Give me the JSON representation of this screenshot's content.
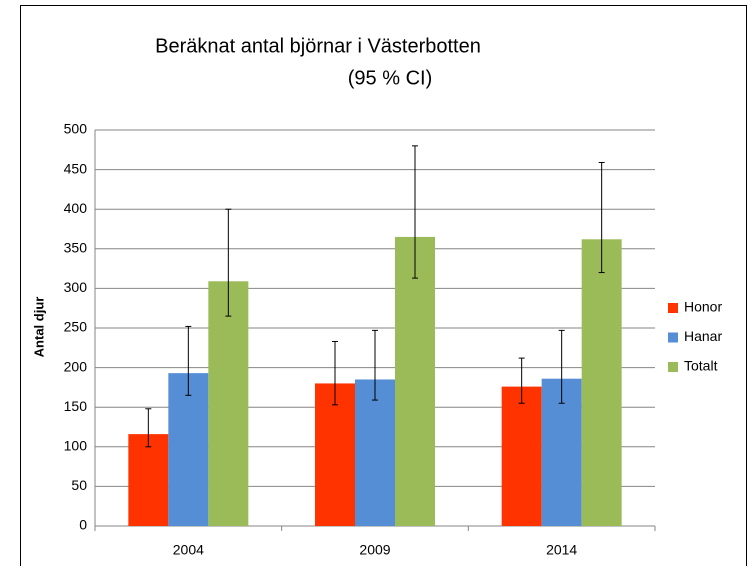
{
  "chart_data": {
    "type": "bar",
    "title": "Beräknat antal björnar i Västerbotten",
    "subtitle": "(95 % CI)",
    "y_label": "Antal djur",
    "categories": [
      "2004",
      "2009",
      "2014"
    ],
    "series": [
      {
        "name": "Honor",
        "color": "#ff3300",
        "values": [
          116,
          180,
          176
        ],
        "lower": [
          100,
          153,
          155
        ],
        "upper": [
          148,
          233,
          212
        ]
      },
      {
        "name": "Hanar",
        "color": "#558ed5",
        "values": [
          193,
          185,
          186
        ],
        "lower": [
          165,
          159,
          155
        ],
        "upper": [
          252,
          247,
          247
        ]
      },
      {
        "name": "Totalt",
        "color": "#9bbb59",
        "values": [
          309,
          365,
          362
        ],
        "lower": [
          265,
          313,
          320
        ],
        "upper": [
          400,
          480,
          459
        ]
      }
    ],
    "ylim": [
      0,
      500
    ],
    "yticks": [
      0,
      50,
      100,
      150,
      200,
      250,
      300,
      350,
      400,
      450,
      500
    ],
    "grid": true,
    "legend": "right"
  }
}
